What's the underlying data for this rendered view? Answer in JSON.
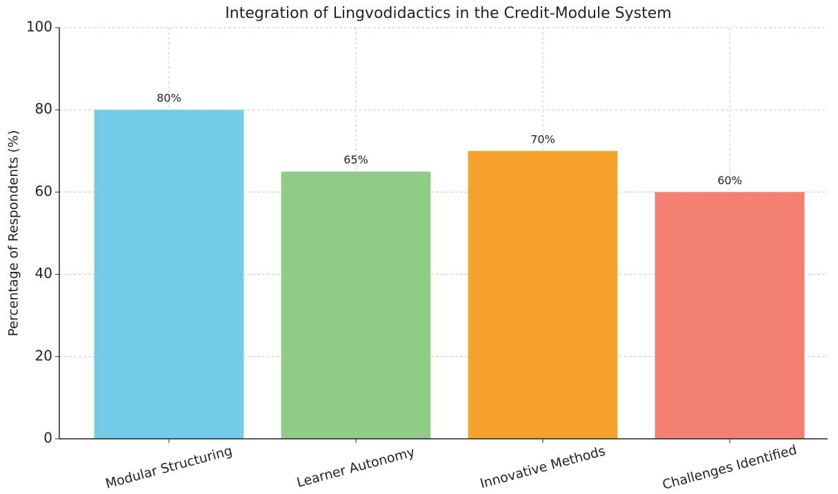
{
  "chart_data": {
    "type": "bar",
    "title": "Integration of Lingvodidactics in the Credit-Module System",
    "ylabel": "Percentage of Respondents (%)",
    "categories": [
      "Modular Structuring",
      "Learner Autonomy",
      "Innovative Methods",
      "Challenges Identified"
    ],
    "values": [
      80,
      65,
      70,
      60
    ],
    "value_labels": [
      "80%",
      "65%",
      "70%",
      "60%"
    ],
    "colors": [
      "#72cce8",
      "#90cb88",
      "#f6a22b",
      "#f38071"
    ],
    "ylim": [
      0,
      100
    ],
    "yticks": [
      0,
      20,
      40,
      60,
      80,
      100
    ],
    "grid": true
  }
}
